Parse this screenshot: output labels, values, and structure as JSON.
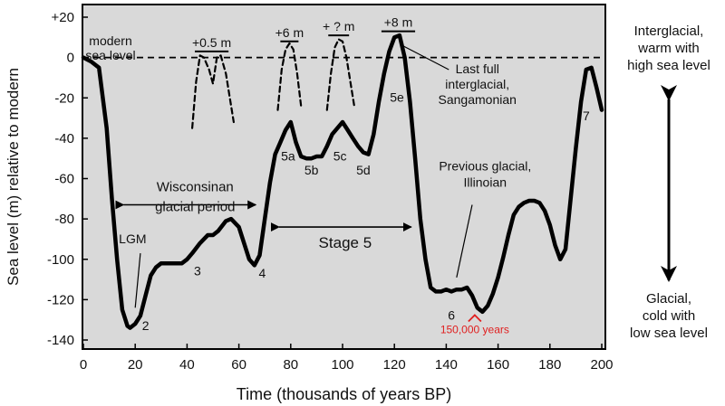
{
  "chart_data": {
    "type": "line",
    "title": "",
    "xlabel": "Time (thousands of years BP)",
    "ylabel": "Sea level (m) relative to modern",
    "xlim": [
      0,
      200
    ],
    "ylim": [
      -140,
      25
    ],
    "xticks": [
      0,
      20,
      40,
      60,
      80,
      100,
      120,
      140,
      160,
      180,
      200
    ],
    "yticks": [
      20,
      0,
      -20,
      -40,
      -60,
      -80,
      -100,
      -120,
      -140
    ],
    "xtick_labels": [
      "0",
      "20",
      "40",
      "60",
      "80",
      "100",
      "120",
      "140",
      "160",
      "180",
      "200"
    ],
    "ytick_labels": [
      "+20",
      "0",
      "-20",
      "-40",
      "-60",
      "-80",
      "-100",
      "-120",
      "-140"
    ],
    "grid": false,
    "modern_sea_level": 0,
    "series": [
      {
        "name": "Sea level curve",
        "style": "solid",
        "x": [
          0,
          3,
          6,
          9,
          11,
          13,
          15,
          17,
          18,
          20,
          22,
          24,
          26,
          28,
          30,
          32,
          35,
          38,
          40,
          42,
          45,
          48,
          50,
          52,
          55,
          57,
          60,
          62,
          64,
          66,
          68,
          70,
          72,
          74,
          76,
          78,
          80,
          82,
          84,
          86,
          88,
          90,
          92,
          94,
          96,
          98,
          100,
          102,
          104,
          106,
          108,
          110,
          112,
          114,
          116,
          118,
          120,
          122,
          124,
          126,
          128,
          130,
          132,
          134,
          136,
          138,
          140,
          142,
          144,
          146,
          148,
          150,
          152,
          154,
          156,
          158,
          160,
          162,
          164,
          166,
          168,
          170,
          172,
          174,
          176,
          178,
          180,
          182,
          184,
          186,
          188,
          190,
          192,
          194,
          196,
          198,
          200
        ],
        "values": [
          0,
          -2,
          -5,
          -35,
          -70,
          -100,
          -125,
          -133,
          -134,
          -132,
          -128,
          -118,
          -108,
          -104,
          -102,
          -102,
          -102,
          -102,
          -100,
          -97,
          -92,
          -88,
          -88,
          -86,
          -81,
          -80,
          -84,
          -92,
          -100,
          -103,
          -98,
          -80,
          -62,
          -48,
          -42,
          -36,
          -32,
          -42,
          -49,
          -50,
          -50,
          -49,
          -49,
          -44,
          -38,
          -35,
          -32,
          -36,
          -40,
          -44,
          -47,
          -48,
          -38,
          -22,
          -8,
          3,
          10,
          11,
          0,
          -22,
          -50,
          -80,
          -100,
          -114,
          -116,
          -116,
          -115,
          -116,
          -115,
          -115,
          -114,
          -118,
          -124,
          -126,
          -123,
          -117,
          -109,
          -99,
          -88,
          -78,
          -74,
          -72,
          -71,
          -71,
          -72,
          -76,
          -83,
          -93,
          -100,
          -95,
          -70,
          -45,
          -22,
          -6,
          -5,
          -15,
          -26
        ]
      },
      {
        "name": "Highstand estimate +0.5 m",
        "style": "dashed",
        "x": [
          42,
          43.5,
          45,
          46.5,
          48.5,
          50,
          51.5,
          53,
          55,
          56.5,
          58
        ],
        "values": [
          -35,
          -12,
          1,
          0,
          -6,
          -13,
          0,
          1,
          -8,
          -20,
          -32
        ]
      },
      {
        "name": "Highstand estimate +6 m",
        "style": "dashed",
        "x": [
          75,
          76.5,
          78,
          79.5,
          81,
          82.5,
          84
        ],
        "values": [
          -26,
          -6,
          4,
          7,
          4,
          -8,
          -24
        ]
      },
      {
        "name": "Highstand estimate + ? m",
        "style": "dashed",
        "x": [
          94,
          95.5,
          97,
          98.5,
          100,
          101.5,
          103,
          104.5
        ],
        "values": [
          -26,
          -8,
          5,
          9,
          8,
          0,
          -12,
          -24
        ]
      }
    ],
    "highstand_bars": [
      {
        "label": "+0.5 m",
        "x0": 43,
        "x1": 56,
        "y": 3
      },
      {
        "label": "+6 m",
        "x0": 76,
        "x1": 83,
        "y": 8
      },
      {
        "label": "+ ? m",
        "x0": 94.5,
        "x1": 102.5,
        "y": 11
      },
      {
        "label": "+8 m",
        "x0": 115,
        "x1": 128,
        "y": 13
      }
    ],
    "point_labels": [
      {
        "text": "2",
        "x": 24,
        "y": -135
      },
      {
        "text": "3",
        "x": 44,
        "y": -108
      },
      {
        "text": "4",
        "x": 69,
        "y": -109
      },
      {
        "text": "5a",
        "x": 79,
        "y": -51
      },
      {
        "text": "5b",
        "x": 88,
        "y": -58
      },
      {
        "text": "5c",
        "x": 99,
        "y": -51
      },
      {
        "text": "5d",
        "x": 108,
        "y": -58
      },
      {
        "text": "5e",
        "x": 121,
        "y": -22
      },
      {
        "text": "6",
        "x": 142,
        "y": -130
      },
      {
        "text": "7",
        "x": 194,
        "y": -31
      },
      {
        "text": "LGM",
        "x": 19,
        "y": -92
      }
    ],
    "annotations": {
      "modern_sea_level": "modern sea level",
      "modern_sea_level_lines": [
        "modern",
        "sea level"
      ],
      "wisconsinan": [
        "Wisconsinan",
        "glacial period"
      ],
      "wisconsinan_range": [
        12,
        70
      ],
      "wisconsinan_y": -73,
      "stage5": "Stage 5",
      "stage5_range": [
        72,
        130
      ],
      "stage5_y": -84,
      "last_interglacial": [
        "Last full",
        "interglacial,",
        "Sangamonian"
      ],
      "previous_glacial": [
        "Previous glacial,",
        "Illinoian"
      ],
      "red_marker": "150,000 years",
      "red_marker_x": 151,
      "red_marker_y": -129
    },
    "side_legend": {
      "top": [
        "Interglacial,",
        "warm with",
        "high sea level"
      ],
      "bottom": [
        "Glacial,",
        "cold with",
        "low sea level"
      ]
    }
  },
  "colors": {
    "plot_background": "#d9d9d9",
    "line": "#000000",
    "red_marker": "#e02020"
  }
}
